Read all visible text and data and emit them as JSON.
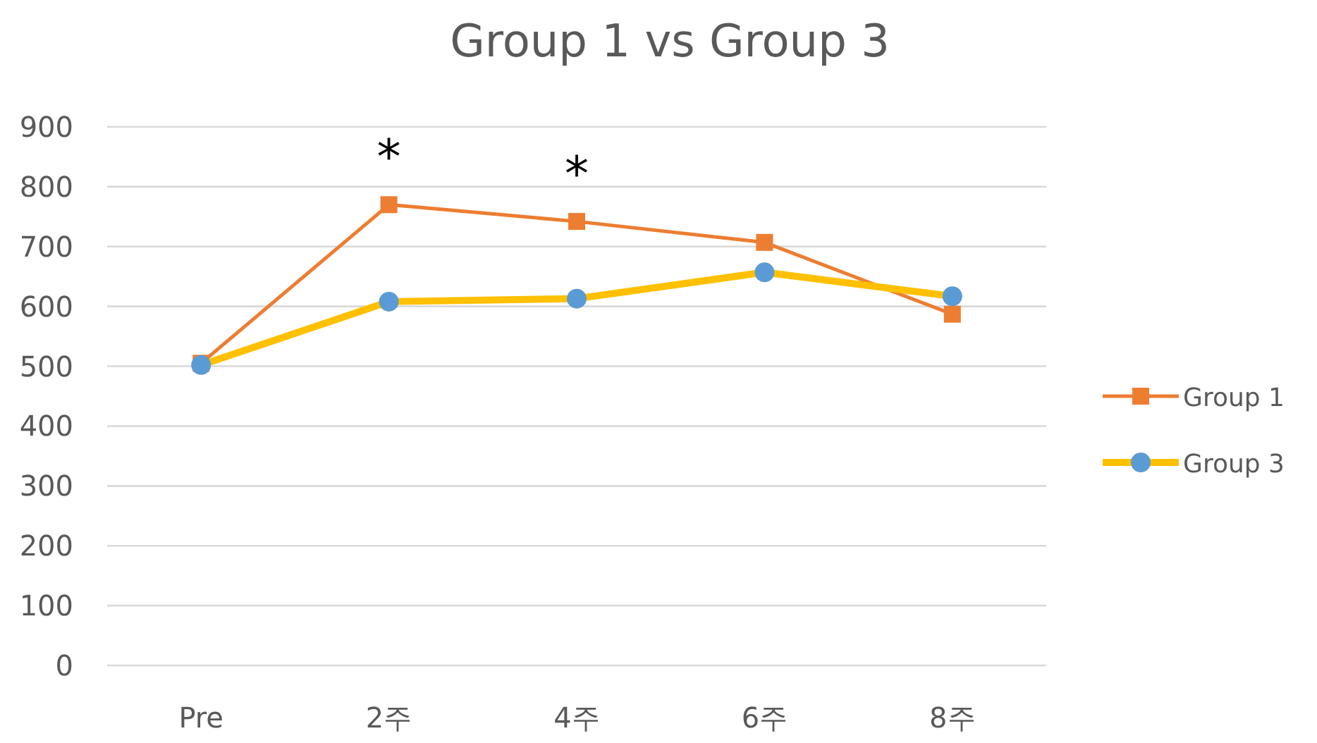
{
  "chart_data": {
    "type": "line",
    "title": "Group 1 vs Group 3",
    "categories": [
      "Pre",
      "2주",
      "4주",
      "6주",
      "8주"
    ],
    "series": [
      {
        "name": "Group 1",
        "color": "#ed7d31",
        "marker": "square",
        "values": [
          505,
          770,
          742,
          707,
          587
        ]
      },
      {
        "name": "Group 3",
        "color": "#ffc000",
        "marker": "circle",
        "colors": [
          "#5b9bd5",
          "#5b9bd5",
          "#5b9bd5",
          "#5b9bd5",
          "#5b9bd5"
        ],
        "values": [
          502,
          608,
          613,
          657,
          617
        ]
      }
    ],
    "ylim": [
      0,
      900
    ],
    "yticks": [
      0,
      100,
      200,
      300,
      400,
      500,
      600,
      700,
      800,
      900
    ],
    "grid": "y",
    "legend": "right",
    "annotations": [
      {
        "text": "*",
        "x": "2주",
        "y": 770
      },
      {
        "text": "*",
        "x": "4주",
        "y": 742
      }
    ]
  }
}
